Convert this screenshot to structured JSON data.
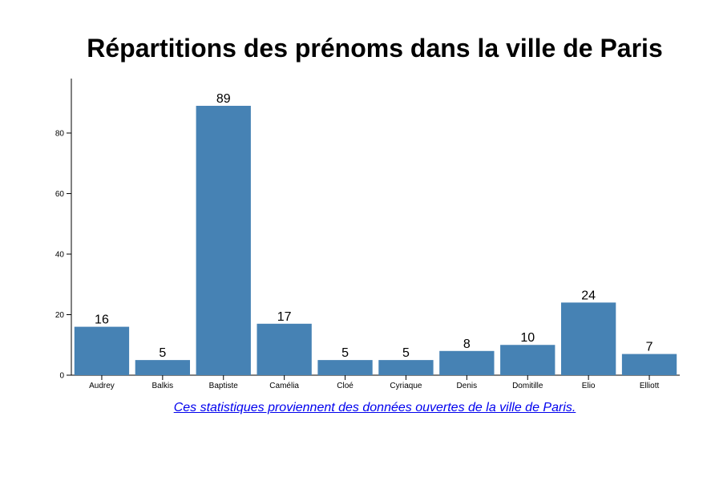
{
  "chart_data": {
    "type": "bar",
    "title": "Répartitions des prénoms dans la ville de Paris",
    "categories": [
      "Audrey",
      "Balkis",
      "Baptiste",
      "Camélia",
      "Cloé",
      "Cyriaque",
      "Denis",
      "Domitille",
      "Elio",
      "Elliott"
    ],
    "values": [
      16,
      5,
      89,
      17,
      5,
      5,
      8,
      10,
      24,
      7
    ],
    "yticks": [
      0,
      20,
      40,
      60,
      80
    ],
    "ylim": [
      0,
      98
    ],
    "xlabel": "",
    "ylabel": "",
    "grid": false,
    "bar_color": "#4682b4"
  },
  "source": {
    "text": "Ces statistiques proviennent des données ouvertes de la ville de Paris."
  }
}
